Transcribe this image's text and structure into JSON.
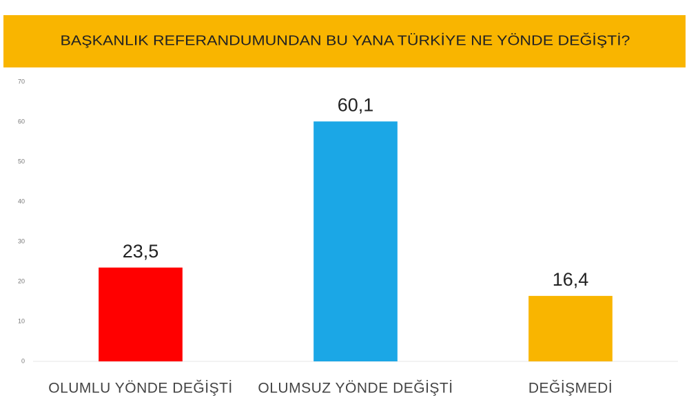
{
  "chart_data": {
    "type": "bar",
    "title": "BAŞKANLIK REFERANDUMUNDAN BU YANA TÜRKİYE NE YÖNDE DEĞİŞTİ?",
    "categories": [
      "OLUMLU YÖNDE DEĞİŞTİ",
      "OLUMSUZ YÖNDE DEĞİŞTİ",
      "DEĞİŞMEDİ"
    ],
    "values": [
      23.5,
      60.1,
      16.4
    ],
    "value_labels": [
      "23,5",
      "60,1",
      "16,4"
    ],
    "colors": [
      "#ff0000",
      "#1ba7e6",
      "#f9b500"
    ],
    "ylim": [
      0,
      70
    ],
    "yticks": [
      0,
      10,
      20,
      30,
      40,
      50,
      60,
      70
    ],
    "banner_color": "#f9b500"
  }
}
